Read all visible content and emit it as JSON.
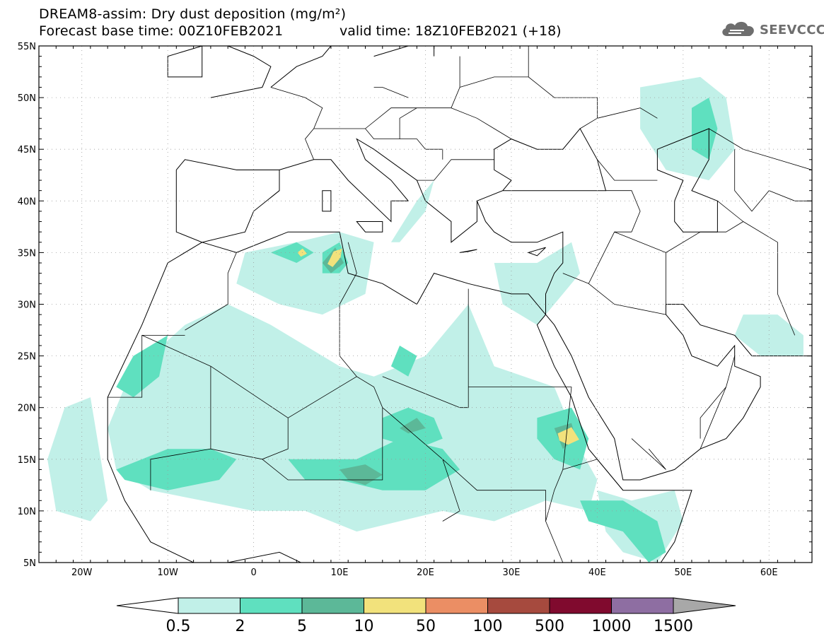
{
  "title": {
    "line1": "DREAM8-assim: Dry dust deposition (mg/m²)",
    "line2": "Forecast base time: 00Z10FEB2021",
    "valid": "valid time: 18Z10FEB2021 (+18)"
  },
  "logo": {
    "text": "SEEVCCC",
    "icon": "cloud-logo-icon",
    "color": "#6e6e6e"
  },
  "map": {
    "lon_range": [
      -25,
      65
    ],
    "lat_range": [
      5,
      55
    ],
    "lat_labels": [
      "5N",
      "10N",
      "15N",
      "20N",
      "25N",
      "30N",
      "35N",
      "40N",
      "45N",
      "50N",
      "55N"
    ],
    "lon_labels": [
      "20W",
      "10W",
      "0",
      "10E",
      "20E",
      "30E",
      "40E",
      "50E",
      "60E"
    ],
    "gridlines": true
  },
  "legend": {
    "colors": [
      "#c1f0e8",
      "#5fe0bf",
      "#5cb898",
      "#f2e27c",
      "#eb8e64",
      "#a64a3e",
      "#800a2e",
      "#8e6ea2",
      "#a8a8a8"
    ],
    "labels": [
      "0.5",
      "2",
      "5",
      "10",
      "50",
      "100",
      "500",
      "1000",
      "1500"
    ],
    "low_arrow_color": "#ffffff",
    "high_arrow_color": "#a8a8a8"
  },
  "chart_data": {
    "type": "heatmap",
    "title": "DREAM8-assim: Dry dust deposition (mg/m²)",
    "xlim": [
      -25,
      65
    ],
    "ylim": [
      5,
      55
    ],
    "levels": [
      0.5,
      2,
      5,
      10,
      50,
      100,
      500,
      1000,
      1500
    ],
    "regions": [
      {
        "level": 0,
        "points": [
          [
            -15,
            22
          ],
          [
            -12,
            25
          ],
          [
            -8,
            28
          ],
          [
            -3,
            30
          ],
          [
            2,
            28
          ],
          [
            6,
            26
          ],
          [
            10,
            24
          ],
          [
            14,
            23
          ],
          [
            20,
            25
          ],
          [
            23,
            28
          ],
          [
            25,
            30
          ],
          [
            26,
            28
          ],
          [
            28,
            24
          ],
          [
            35,
            22
          ],
          [
            36,
            20
          ],
          [
            38,
            16
          ],
          [
            40,
            13
          ],
          [
            39,
            10
          ],
          [
            34,
            11
          ],
          [
            28,
            9
          ],
          [
            22,
            10
          ],
          [
            17,
            9
          ],
          [
            12,
            8
          ],
          [
            6,
            10
          ],
          [
            0,
            10
          ],
          [
            -6,
            11
          ],
          [
            -12,
            12
          ],
          [
            -16,
            14
          ],
          [
            -17,
            18
          ]
        ]
      },
      {
        "level": 0,
        "points": [
          [
            -22,
            20
          ],
          [
            -19,
            21
          ],
          [
            -18,
            16
          ],
          [
            -17,
            11
          ],
          [
            -19,
            9
          ],
          [
            -23,
            10
          ],
          [
            -24,
            15
          ]
        ]
      },
      {
        "level": 0,
        "points": [
          [
            -1,
            35
          ],
          [
            5,
            36
          ],
          [
            10,
            37
          ],
          [
            14,
            36
          ],
          [
            13,
            31
          ],
          [
            8,
            29
          ],
          [
            3,
            30
          ],
          [
            -2,
            32
          ]
        ]
      },
      {
        "level": 0,
        "points": [
          [
            17,
            36
          ],
          [
            20,
            39
          ],
          [
            21,
            42
          ],
          [
            19,
            40
          ],
          [
            16,
            36
          ]
        ]
      },
      {
        "level": 0,
        "points": [
          [
            28,
            34
          ],
          [
            33,
            34
          ],
          [
            37,
            36
          ],
          [
            38,
            33
          ],
          [
            33,
            28
          ],
          [
            29,
            30
          ]
        ]
      },
      {
        "level": 0,
        "points": [
          [
            45,
            51
          ],
          [
            52,
            52
          ],
          [
            55,
            50
          ],
          [
            56,
            45
          ],
          [
            53,
            42
          ],
          [
            48,
            43
          ],
          [
            45,
            47
          ]
        ]
      },
      {
        "level": 0,
        "points": [
          [
            40,
            12
          ],
          [
            44,
            11
          ],
          [
            49,
            12
          ],
          [
            50,
            9
          ],
          [
            47,
            5
          ],
          [
            43,
            6
          ],
          [
            41,
            8
          ]
        ]
      },
      {
        "level": 0,
        "points": [
          [
            57,
            29
          ],
          [
            61,
            29
          ],
          [
            64,
            27
          ],
          [
            64,
            25
          ],
          [
            59,
            25
          ],
          [
            56,
            27
          ]
        ]
      },
      {
        "level": 1,
        "points": [
          [
            -16,
            14
          ],
          [
            -10,
            16
          ],
          [
            -5,
            16
          ],
          [
            -2,
            15
          ],
          [
            -4,
            13
          ],
          [
            -10,
            12
          ],
          [
            -15,
            13
          ]
        ]
      },
      {
        "level": 1,
        "points": [
          [
            4,
            15
          ],
          [
            8,
            15
          ],
          [
            12,
            15
          ],
          [
            17,
            17
          ],
          [
            22,
            16
          ],
          [
            24,
            14
          ],
          [
            20,
            12
          ],
          [
            15,
            12
          ],
          [
            10,
            13
          ],
          [
            6,
            13
          ]
        ]
      },
      {
        "level": 1,
        "points": [
          [
            15,
            19
          ],
          [
            18,
            20
          ],
          [
            21,
            19
          ],
          [
            22,
            17
          ],
          [
            19,
            16
          ],
          [
            15,
            17
          ]
        ]
      },
      {
        "level": 1,
        "points": [
          [
            8,
            35
          ],
          [
            10,
            36
          ],
          [
            11,
            34
          ],
          [
            10,
            33
          ],
          [
            8,
            33
          ]
        ]
      },
      {
        "level": 1,
        "points": [
          [
            2,
            35
          ],
          [
            5,
            36
          ],
          [
            7,
            35
          ],
          [
            5,
            34
          ]
        ]
      },
      {
        "level": 1,
        "points": [
          [
            33,
            19
          ],
          [
            37,
            20
          ],
          [
            39,
            17
          ],
          [
            38,
            14
          ],
          [
            35,
            15
          ],
          [
            33,
            17
          ]
        ]
      },
      {
        "level": 1,
        "points": [
          [
            38,
            11
          ],
          [
            43,
            11
          ],
          [
            47,
            9
          ],
          [
            48,
            6
          ],
          [
            46,
            5
          ],
          [
            43,
            8
          ],
          [
            39,
            9
          ]
        ]
      },
      {
        "level": 1,
        "points": [
          [
            -14,
            25
          ],
          [
            -10,
            27
          ],
          [
            -11,
            23
          ],
          [
            -14,
            21
          ],
          [
            -16,
            22
          ]
        ]
      },
      {
        "level": 1,
        "points": [
          [
            17,
            26
          ],
          [
            19,
            25
          ],
          [
            18,
            23
          ],
          [
            16,
            24
          ]
        ]
      },
      {
        "level": 1,
        "points": [
          [
            51,
            49
          ],
          [
            53,
            50
          ],
          [
            54,
            47
          ],
          [
            53,
            44
          ],
          [
            51,
            45
          ]
        ]
      },
      {
        "level": 2,
        "points": [
          [
            10,
            14
          ],
          [
            13,
            14.5
          ],
          [
            15,
            13.5
          ],
          [
            13,
            12.5
          ],
          [
            11,
            13
          ]
        ]
      },
      {
        "level": 2,
        "points": [
          [
            17,
            18
          ],
          [
            19,
            19
          ],
          [
            20,
            18
          ],
          [
            18,
            17.5
          ]
        ]
      },
      {
        "level": 2,
        "points": [
          [
            35,
            18
          ],
          [
            37,
            18.5
          ],
          [
            37.5,
            17
          ],
          [
            36,
            16
          ]
        ]
      },
      {
        "level": 2,
        "points": [
          [
            8,
            34
          ],
          [
            9.5,
            35.5
          ],
          [
            10.5,
            34
          ],
          [
            9,
            33
          ]
        ]
      },
      {
        "level": 3,
        "points": [
          [
            35.4,
            17.5
          ],
          [
            37,
            18.1
          ],
          [
            37.9,
            16.9
          ],
          [
            36.6,
            16.4
          ],
          [
            35.6,
            16.8
          ]
        ]
      },
      {
        "level": 3,
        "points": [
          [
            8.6,
            33.9
          ],
          [
            9.3,
            35.1
          ],
          [
            10.3,
            35.4
          ],
          [
            10.1,
            34.5
          ],
          [
            9.2,
            33.6
          ]
        ]
      },
      {
        "level": 3,
        "points": [
          [
            5.1,
            35.0
          ],
          [
            5.7,
            35.4
          ],
          [
            6.2,
            34.9
          ],
          [
            5.5,
            34.6
          ]
        ]
      }
    ]
  }
}
